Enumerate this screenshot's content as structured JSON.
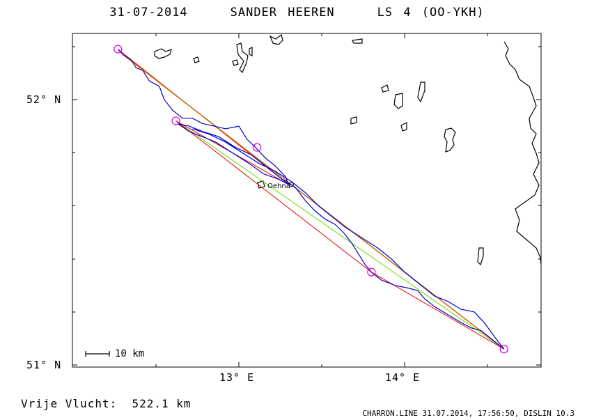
{
  "header": {
    "date": "31-07-2014",
    "pilot": "SANDER HEEREN",
    "glider": "LS 4 (OO-YKH)"
  },
  "axes": {
    "lat_ticks": [
      "52° N",
      "51° N"
    ],
    "lon_ticks": [
      "13° E",
      "14° E"
    ]
  },
  "scale_bar": {
    "label": "10 km"
  },
  "place": {
    "name": "Oehna"
  },
  "distance": {
    "label": "Vrije Vlucht:",
    "value": "522.1 km"
  },
  "footer": {
    "text": "CHARRON.LINE 31.07.2014, 17:56:50, DISLIN 10.3"
  },
  "colors": {
    "track": "#0000cc",
    "task_red": "#ee0000",
    "task_orange": "#cc6600",
    "task_green": "#66dd00",
    "turnpoint": "#dd00dd",
    "coast": "#000000"
  },
  "turnpoints_lonlat": [
    [
      12.27,
      52.19
    ],
    [
      12.62,
      51.92
    ],
    [
      13.11,
      51.82
    ],
    [
      13.8,
      51.35
    ],
    [
      14.6,
      51.06
    ]
  ],
  "task_legs": {
    "red": [
      [
        12.27,
        52.19
      ],
      [
        13.3,
        51.68
      ],
      [
        12.62,
        51.92
      ],
      [
        13.8,
        51.35
      ],
      [
        14.6,
        51.06
      ]
    ],
    "orange": [
      [
        12.3,
        52.17
      ],
      [
        14.58,
        51.07
      ]
    ],
    "green": [
      [
        12.62,
        51.92
      ],
      [
        14.6,
        51.06
      ]
    ]
  },
  "track_lonlat": [
    [
      12.27,
      52.19
    ],
    [
      12.3,
      52.17
    ],
    [
      12.35,
      52.15
    ],
    [
      12.38,
      52.12
    ],
    [
      12.42,
      52.11
    ],
    [
      12.46,
      52.07
    ],
    [
      12.52,
      52.05
    ],
    [
      12.55,
      52.0
    ],
    [
      12.6,
      51.96
    ],
    [
      12.66,
      51.93
    ],
    [
      12.72,
      51.93
    ],
    [
      12.78,
      51.91
    ],
    [
      12.85,
      51.9
    ],
    [
      12.92,
      51.89
    ],
    [
      13.0,
      51.9
    ],
    [
      13.05,
      51.85
    ],
    [
      13.1,
      51.82
    ],
    [
      13.16,
      51.78
    ],
    [
      13.22,
      51.75
    ],
    [
      13.28,
      51.71
    ],
    [
      13.3,
      51.68
    ],
    [
      13.24,
      51.7
    ],
    [
      13.15,
      51.72
    ],
    [
      13.06,
      51.76
    ],
    [
      12.96,
      51.8
    ],
    [
      12.86,
      51.84
    ],
    [
      12.78,
      51.86
    ],
    [
      12.7,
      51.88
    ],
    [
      12.63,
      51.91
    ],
    [
      12.7,
      51.9
    ],
    [
      12.78,
      51.88
    ],
    [
      12.88,
      51.86
    ],
    [
      12.98,
      51.82
    ],
    [
      13.08,
      51.79
    ],
    [
      13.18,
      51.74
    ],
    [
      13.26,
      51.7
    ],
    [
      13.34,
      51.67
    ],
    [
      13.4,
      51.62
    ],
    [
      13.46,
      51.58
    ],
    [
      13.52,
      51.55
    ],
    [
      13.58,
      51.53
    ],
    [
      13.63,
      51.5
    ],
    [
      13.68,
      51.46
    ],
    [
      13.72,
      51.42
    ],
    [
      13.76,
      51.38
    ],
    [
      13.8,
      51.35
    ],
    [
      13.86,
      51.32
    ],
    [
      13.94,
      51.3
    ],
    [
      14.02,
      51.29
    ],
    [
      14.08,
      51.28
    ],
    [
      14.12,
      51.25
    ],
    [
      14.18,
      51.22
    ],
    [
      14.26,
      51.19
    ],
    [
      14.34,
      51.16
    ],
    [
      14.4,
      51.14
    ],
    [
      14.46,
      51.13
    ],
    [
      14.52,
      51.1
    ],
    [
      14.6,
      51.06
    ],
    [
      14.55,
      51.1
    ],
    [
      14.48,
      51.16
    ],
    [
      14.42,
      51.2
    ],
    [
      14.34,
      51.21
    ],
    [
      14.26,
      51.24
    ],
    [
      14.18,
      51.26
    ],
    [
      14.08,
      51.31
    ],
    [
      14.0,
      51.35
    ],
    [
      13.92,
      51.4
    ],
    [
      13.84,
      51.44
    ],
    [
      13.74,
      51.48
    ],
    [
      13.64,
      51.52
    ],
    [
      13.56,
      51.56
    ],
    [
      13.48,
      51.6
    ],
    [
      13.4,
      51.65
    ],
    [
      13.32,
      51.69
    ],
    [
      13.22,
      51.73
    ],
    [
      13.12,
      51.76
    ],
    [
      13.02,
      51.8
    ],
    [
      12.92,
      51.84
    ],
    [
      12.82,
      51.87
    ],
    [
      12.72,
      51.89
    ]
  ]
}
